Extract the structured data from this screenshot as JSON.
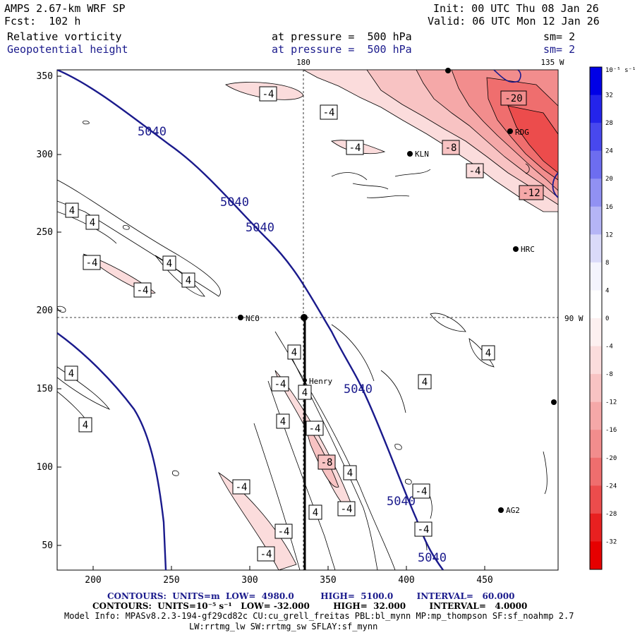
{
  "header": {
    "model": "AMPS 2.67-km WRF SP",
    "init": "Init: 00 UTC Thu 08 Jan 26",
    "fcst": "Fcst:  102 h",
    "valid": "Valid: 06 UTC Mon 12 Jan 26",
    "field1": {
      "name": "Relative vorticity",
      "level": "at pressure =  500 hPa",
      "sm": "sm= 2"
    },
    "field2": {
      "name": "Geopotential height",
      "level": "at pressure =  500 hPa",
      "sm": "sm= 2"
    }
  },
  "map": {
    "top_labels": {
      "lon180": "180",
      "lon135": "135 W"
    },
    "right_label": "90 W",
    "x_ticks": [
      "200",
      "250",
      "300",
      "350",
      "400",
      "450"
    ],
    "y_ticks": [
      "350",
      "300",
      "250",
      "200",
      "150",
      "100",
      "50"
    ],
    "stations": [
      "RDG",
      "KLN",
      "HRC",
      "NCO",
      "Henry",
      "AG2"
    ],
    "height_labels": [
      "5040",
      "5040",
      "5040",
      "5040",
      "5040",
      "5040"
    ],
    "vort_labels_neg": [
      "-4",
      "-4",
      "-4",
      "-20",
      "-8",
      "-4",
      "-12",
      "-4",
      "-4",
      "-4",
      "-4",
      "-8",
      "-4",
      "-4",
      "-4",
      "-4",
      "-4",
      "-4"
    ],
    "vort_labels_pos": [
      "4",
      "4",
      "4",
      "4",
      "4",
      "4",
      "4",
      "4",
      "4",
      "4",
      "4",
      "4"
    ]
  },
  "colorbar": {
    "unit": "10⁻⁵ s⁻¹",
    "labels": [
      "32",
      "28",
      "24",
      "20",
      "16",
      "12",
      "8",
      "4",
      "0",
      "-4",
      "-8",
      "-12",
      "-16",
      "-20",
      "-24",
      "-28",
      "-32"
    ],
    "colors": [
      "#0000e6",
      "#2424eb",
      "#4848ee",
      "#6d6df0",
      "#9191f3",
      "#b5b5f6",
      "#dadaf9",
      "#f4f4fd",
      "#ffffff",
      "#fdf0f0",
      "#fbdcdc",
      "#f8c3c3",
      "#f5a8a8",
      "#f28d8d",
      "#ef6e6e",
      "#ec4c4c",
      "#e82020",
      "#e60000"
    ]
  },
  "footer": {
    "line1": "CONTOURS:  UNITS=m  LOW=  4980.0         HIGH=  5100.0        INTERVAL=   60.000",
    "line2": "CONTOURS:  UNITS=10⁻⁵ s⁻¹   LOW= -32.000        HIGH=  32.000        INTERVAL=   4.0000",
    "line3": "Model Info: MPASv8.2.3-194-gf29cd82c CU:cu_grell_freitas PBL:bl_mynn MP:mp_thompson SF:sf_noahmp 2.7",
    "line4": "LW:rrtmg_lw SW:rrtmg_sw SFLAY:sf_mynn"
  }
}
